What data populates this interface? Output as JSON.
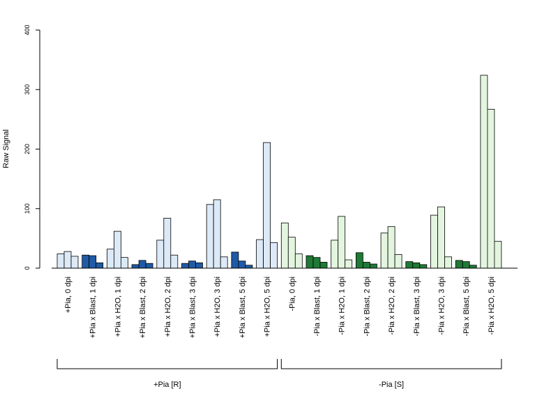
{
  "chart_data": {
    "type": "bar",
    "ylabel": "Raw Signal",
    "xlabel": "",
    "ylim": [
      0,
      400
    ],
    "yticks": [
      0,
      100,
      200,
      300,
      400
    ],
    "grid": false,
    "bars_per_category": 3,
    "categories": [
      {
        "label": "+Pia, 0 dpi",
        "values": [
          24,
          28,
          20
        ],
        "color": "#dce9f7"
      },
      {
        "label": "+Pia x Blast, 1 dpi",
        "values": [
          22,
          21,
          9
        ],
        "color": "#1f5aa6"
      },
      {
        "label": "+Pia x H2O, 1 dpi",
        "values": [
          32,
          62,
          18
        ],
        "color": "#dce9f7"
      },
      {
        "label": "+Pia x Blast, 2 dpi",
        "values": [
          6,
          13,
          8
        ],
        "color": "#1f5aa6"
      },
      {
        "label": "+Pia x H2O, 2 dpi",
        "values": [
          47,
          84,
          22
        ],
        "color": "#dce9f7"
      },
      {
        "label": "+Pia x Blast, 3 dpi",
        "values": [
          8,
          12,
          9
        ],
        "color": "#1f5aa6"
      },
      {
        "label": "+Pia x H2O, 3 dpi",
        "values": [
          107,
          115,
          19
        ],
        "color": "#dce9f7"
      },
      {
        "label": "+Pia x Blast, 5 dpi",
        "values": [
          27,
          12,
          5
        ],
        "color": "#1f5aa6"
      },
      {
        "label": "+Pia x H2O, 5 dpi",
        "values": [
          48,
          211,
          43
        ],
        "color": "#dce9f7"
      },
      {
        "label": "-Pia, 0 dpi",
        "values": [
          76,
          52,
          24
        ],
        "color": "#e3f5df"
      },
      {
        "label": "-Pia x Blast, 1 dpi",
        "values": [
          21,
          18,
          10
        ],
        "color": "#1f7a36"
      },
      {
        "label": "-Pia x H2O, 1 dpi",
        "values": [
          47,
          87,
          14
        ],
        "color": "#e3f5df"
      },
      {
        "label": "-Pia x Blast, 2 dpi",
        "values": [
          26,
          10,
          7
        ],
        "color": "#1f7a36"
      },
      {
        "label": "-Pia x H2O, 2 dpi",
        "values": [
          59,
          70,
          23
        ],
        "color": "#e3f5df"
      },
      {
        "label": "-Pia x Blast, 3 dpi",
        "values": [
          11,
          9,
          6
        ],
        "color": "#1f7a36"
      },
      {
        "label": "-Pia x H2O, 3 dpi",
        "values": [
          89,
          103,
          19
        ],
        "color": "#e3f5df"
      },
      {
        "label": "-Pia x Blast, 5 dpi",
        "values": [
          13,
          11,
          5
        ],
        "color": "#1f7a36"
      },
      {
        "label": "-Pia x H2O, 5 dpi",
        "values": [
          324,
          267,
          45
        ],
        "color": "#e3f5df"
      }
    ],
    "groups": [
      {
        "label": "+Pia [R]",
        "from": 0,
        "to": 8
      },
      {
        "label": "-Pia [S]",
        "from": 9,
        "to": 17
      }
    ]
  }
}
